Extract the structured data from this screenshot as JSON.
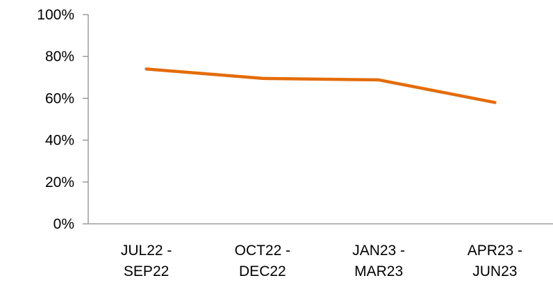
{
  "chart_data": {
    "type": "line",
    "categories": [
      "JUL22 -\nSEP22",
      "OCT22 -\nDEC22",
      "JAN23 -\nMAR23",
      "APR23 -\nJUN23"
    ],
    "series": [
      {
        "name": null,
        "color": "#e46c0a",
        "values": [
          74,
          69.5,
          68.8,
          58
        ]
      }
    ],
    "ylim": [
      0,
      100
    ],
    "yticks": [
      {
        "value": 0,
        "label": "0%"
      },
      {
        "value": 20,
        "label": "20%"
      },
      {
        "value": 40,
        "label": "40%"
      },
      {
        "value": 60,
        "label": "60%"
      },
      {
        "value": 80,
        "label": "80%"
      },
      {
        "value": 100,
        "label": "100%"
      }
    ],
    "grid": false
  }
}
